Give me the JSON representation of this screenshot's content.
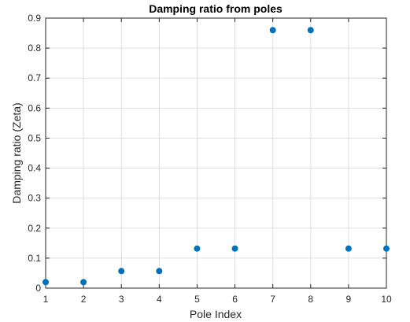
{
  "chart_data": {
    "type": "scatter",
    "title": "Damping ratio from poles",
    "xlabel": "Pole Index",
    "ylabel": "Damping ratio (Zeta)",
    "xlim": [
      1,
      10
    ],
    "ylim": [
      0,
      0.9
    ],
    "xticks": [
      1,
      2,
      3,
      4,
      5,
      6,
      7,
      8,
      9,
      10
    ],
    "yticks": [
      0,
      0.1,
      0.2,
      0.3,
      0.4,
      0.5,
      0.6,
      0.7,
      0.8,
      0.9
    ],
    "grid": true,
    "marker_color": "#0072BD",
    "series": [
      {
        "x": [
          1,
          2,
          3,
          4,
          5,
          6,
          7,
          8,
          9,
          10
        ],
        "y": [
          0.02,
          0.02,
          0.057,
          0.057,
          0.132,
          0.132,
          0.86,
          0.86,
          0.132,
          0.132
        ]
      }
    ]
  }
}
